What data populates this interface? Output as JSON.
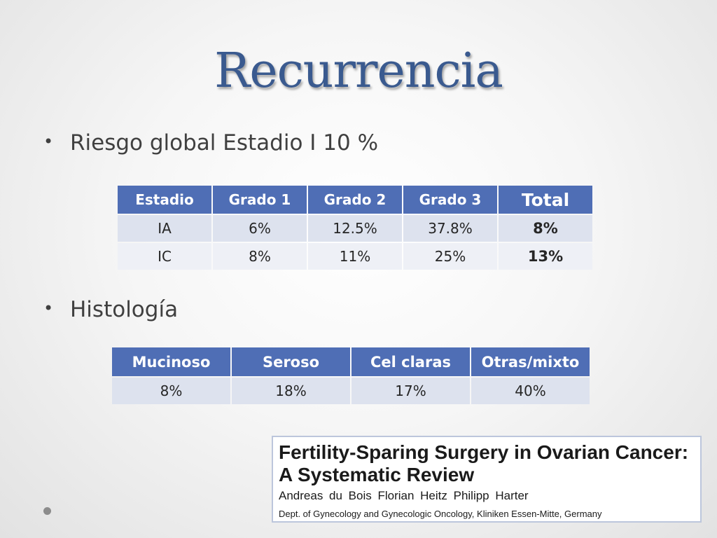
{
  "slide": {
    "title": "Recurrencia",
    "bullet_glyph": "•",
    "bullet1": "Riesgo global Estadio I 10 %",
    "bullet2": "Histología"
  },
  "table_stage": {
    "headers": [
      "Estadio",
      "Grado 1",
      "Grado 2",
      "Grado 3",
      "Total"
    ],
    "rows": [
      [
        "IA",
        "6%",
        "12.5%",
        "37.8%",
        "8%"
      ],
      [
        "IC",
        "8%",
        "11%",
        "25%",
        "13%"
      ]
    ]
  },
  "table_histology": {
    "headers": [
      "Mucinoso",
      "Seroso",
      "Cel claras",
      "Otras/mixto"
    ],
    "rows": [
      [
        "8%",
        "18%",
        "17%",
        "40%"
      ]
    ]
  },
  "reference": {
    "title_line1": "Fertility-Sparing Surgery in Ovarian Cancer:",
    "title_line2": "A Systematic Review",
    "authors": "Andreas du Bois   Florian Heitz   Philipp Harter",
    "department": "Dept. of Gynecology and Gynecologic Oncology, Kliniken Essen-Mitte, Germany"
  },
  "colors": {
    "title": "#3a5a8f",
    "table_header": "#4f6eb5",
    "table_row": "#dde2ee",
    "table_row_alt": "#eef0f6"
  }
}
